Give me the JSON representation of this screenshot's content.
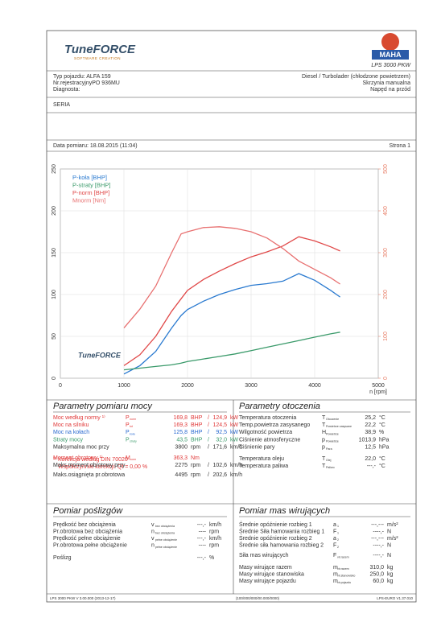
{
  "header": {
    "logo": "TuneFORCE",
    "logo_sub": "SOFTWARE CREATION",
    "brand": "MAHA",
    "product": "LPS 3000 PKW"
  },
  "vehicle": {
    "left": [
      "Typ pojazdu:     ALFA 159",
      "Nr.rejestracyjnyPO 936MU",
      "Diagnosta:"
    ],
    "right": [
      "Diesel / Turbolader (chłodzone powietrzem)",
      "Skrzynia manualna",
      "Napęd na przód"
    ],
    "series_label": "SERIA"
  },
  "date": {
    "label": "Data pomiaru: 18.08.2015 (11:04)",
    "page": "Strona 1"
  },
  "chart_data": {
    "type": "line",
    "watermark": "TuneFORCE",
    "xlabel": "n [rpm]",
    "x": [
      1000,
      1250,
      1500,
      1750,
      1900,
      2000,
      2250,
      2500,
      2750,
      3000,
      3250,
      3500,
      3750,
      4000,
      4250,
      4400
    ],
    "series": [
      {
        "name": "P-koła [BHP]",
        "color": "#2a7ad0",
        "values": [
          5,
          15,
          32,
          60,
          75,
          82,
          92,
          100,
          106,
          111,
          113,
          116,
          125,
          117,
          105,
          97
        ]
      },
      {
        "name": "P-straty [BHP]",
        "color": "#3a9a6a",
        "values": [
          10,
          12,
          14,
          16,
          18,
          20,
          23,
          26,
          29,
          33,
          37,
          41,
          45,
          49,
          53,
          55
        ]
      },
      {
        "name": "P-norm [BHP]",
        "color": "#e04848",
        "values": [
          15,
          28,
          50,
          80,
          95,
          105,
          118,
          128,
          137,
          145,
          151,
          158,
          169,
          164,
          157,
          152
        ]
      },
      {
        "name": "Mnorm [Nm]",
        "color": "#e87070",
        "axis": "y2",
        "values": [
          120,
          165,
          220,
          300,
          345,
          350,
          360,
          362,
          358,
          350,
          335,
          310,
          280,
          260,
          240,
          225
        ]
      }
    ],
    "xlim": [
      0,
      5000
    ],
    "xticks": [
      0,
      1000,
      2000,
      3000,
      4000,
      5000
    ],
    "ylim": [
      0,
      250
    ],
    "yticks": [
      0,
      50,
      100,
      150,
      200,
      250
    ],
    "y2lim": [
      0,
      500
    ],
    "y2ticks": [
      0,
      100,
      200,
      300,
      400,
      500
    ],
    "y2color": "#e8806a",
    "grid": true
  },
  "power": {
    "title": "Parametry pomiaru mocy",
    "rows": [
      {
        "label": "Moc według normy ¹⁾",
        "sym": "P",
        "sub": "norm",
        "value": "169,8",
        "unit": "BHP",
        "sep": "/",
        "value2": "124,9",
        "unit2": "kW",
        "color": "#e03838"
      },
      {
        "label": "Moc na silniku",
        "sym": "P",
        "sub": "tot",
        "value": "169,3",
        "unit": "BHP",
        "sep": "/",
        "value2": "124,5",
        "unit2": "kW",
        "color": "#e03838"
      },
      {
        "label": "Moc na kołach",
        "sym": "P",
        "sub": "koła",
        "value": "125,8",
        "unit": "BHP",
        "sep": "/",
        "value2": "92,5",
        "unit2": "kW",
        "color": "#2a6ad0"
      },
      {
        "label": "Straty mocy",
        "sym": "P",
        "sub": "straty",
        "value": "43,5",
        "unit": "BHP",
        "sep": "/",
        "value2": "32,0",
        "unit2": "kW",
        "color": "#3a9a6a"
      },
      {
        "label": "Maksymalna moc przy",
        "value": "3800",
        "unit": "rpm",
        "sep": "/",
        "value2": "171,6",
        "unit2": "km/h",
        "color": "#333"
      },
      {
        "label": "Moment obrotowy ¹⁾",
        "sym": "M",
        "sub": "norm",
        "value": "363,3",
        "unit": "Nm",
        "color": "#e03838"
      },
      {
        "label": "Maks.moment obrotowy przy",
        "value": "2275",
        "unit": "rpm",
        "sep": "/",
        "value2": "102,6",
        "unit2": "km/h",
        "color": "#333"
      },
      {
        "label": "Maks.osiągnięta pr.obrotowa",
        "value": "4495",
        "unit": "rpm",
        "sep": "/",
        "value2": "202,6",
        "unit2": "km/h",
        "color": "#333"
      }
    ],
    "note1": "¹⁾ Korekcja według DIN 70020",
    "note2": "Współczynniki korekcji: Qf = 0,00 %"
  },
  "ambient": {
    "title": "Parametry otoczenia",
    "rows": [
      {
        "label": "Temperatura otoczenia",
        "sym": "T",
        "sub": "Otoczenie",
        "value": "25,2",
        "unit": "°C"
      },
      {
        "label": "Temp.powietrza zasysanego",
        "sym": "T",
        "sub": "Powietrze zasysane",
        "value": "22,2",
        "unit": "°C"
      },
      {
        "label": "Wilgotność powietrza",
        "sym": "H",
        "sub": "Powietrze",
        "value": "38,9",
        "unit": "%"
      },
      {
        "label": "Ciśnienie atmosferyczne",
        "sym": "p",
        "sub": "Powietrze",
        "value": "1013,9",
        "unit": "hPa"
      },
      {
        "label": "Ciśnienie pary",
        "sym": "p",
        "sub": "Para",
        "value": "12,5",
        "unit": "hPa"
      },
      {
        "label": "Temperatura oleju",
        "sym": "T",
        "sub": "Olej",
        "value": "22,0",
        "unit": "°C"
      },
      {
        "label": "Temperatura paliwa",
        "sym": "T",
        "sub": "Paliwo",
        "value": "---,-",
        "unit": "°C"
      }
    ]
  },
  "slip": {
    "title": "Pomiar poślizgów",
    "rows": [
      {
        "label": "Prędkość bez obciążenia",
        "sym": "v",
        "sub": "bez obciążenia",
        "value": "---,-",
        "unit": "km/h"
      },
      {
        "label": "Pr.obrotowa bez obciążenia",
        "sym": "n",
        "sub": "bez obciążenia",
        "value": "----",
        "unit": "rpm"
      },
      {
        "label": "Prędkość pełne obciążenie",
        "sym": "v",
        "sub": "pełne obciążenie",
        "value": "---,-",
        "unit": "km/h"
      },
      {
        "label": "Pr.obrotowa pełne obciążenie",
        "sym": "n",
        "sub": "pełne obciążenie",
        "value": "----",
        "unit": "rpm"
      },
      {
        "label": "Poślizg",
        "value": "---,-",
        "unit": "%"
      }
    ]
  },
  "mass": {
    "title": "Pomiar mas wirujących",
    "rows": [
      {
        "label": "Średnie opóźnienie rozbieg 1",
        "sym": "a",
        "sub": "1",
        "value": "---,---",
        "unit": "m/s²"
      },
      {
        "label": "Średnie Siła hamowania rozbieg 1",
        "sym": "F",
        "sub": "1",
        "value": "----,-",
        "unit": "N"
      },
      {
        "label": "Średnie opóźnienie rozbieg 2",
        "sym": "a",
        "sub": "2",
        "value": "---,---",
        "unit": "m/s²"
      },
      {
        "label": "Średnie siła hamowania rozbieg 2",
        "sym": "F",
        "sub": "2",
        "value": "----,-",
        "unit": "N"
      },
      {
        "label": "Siła mas wirujących",
        "sym": "F",
        "sub": "vir.razem",
        "value": "----,-",
        "unit": "N"
      },
      {
        "label": "Masy wirujące razem",
        "sym": "m",
        "sub": "vir.razem",
        "value": "310,0",
        "unit": "kg"
      },
      {
        "label": "Masy wirujące stanowiska",
        "sym": "m",
        "sub": "vir.stanowisko",
        "value": "250,0",
        "unit": "kg"
      },
      {
        "label": "Masy wirujące pojazdu",
        "sym": "m",
        "sub": "vir.pojazdu",
        "value": "60,0",
        "unit": "kg"
      }
    ]
  },
  "footer": {
    "left": "LPS 3000 PKW V 3.00.000 (2013-12-17)",
    "center": "(100/000/000/00.000/0000)",
    "right": "LPS-EURO V1.37.010"
  }
}
